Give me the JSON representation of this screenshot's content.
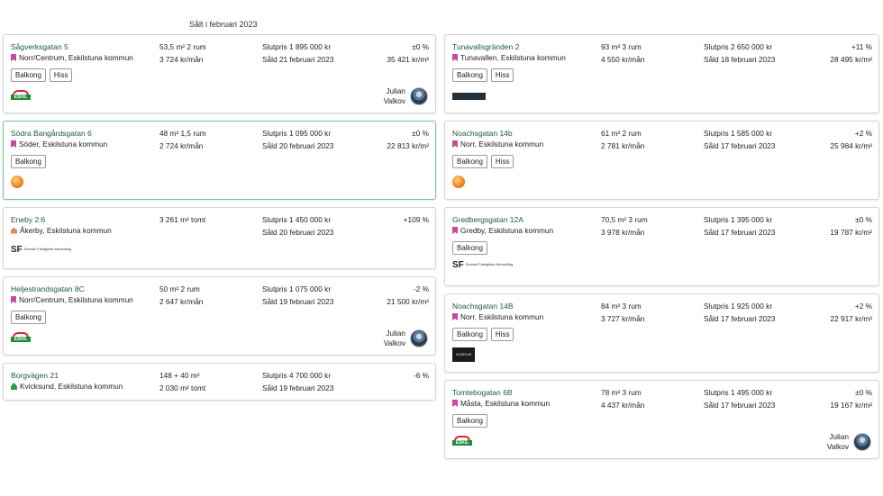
{
  "section_title": "Sålt i februari 2023",
  "left": [
    {
      "title": "Sågverksgatan 5",
      "location": "Norr/Centrum, Eskilstuna kommun",
      "type_icon": "apartment-icon",
      "area": "53,5 m²   2 rum",
      "fee": "3 724 kr/mån",
      "price": "Slutpris 1 895 000 kr",
      "sold": "Såld 21 februari 2023",
      "change": "±0 %",
      "sqm_price": "35 421 kr/m²",
      "tags": [
        "Balkong",
        "Hiss"
      ],
      "logo": "eskil-logo",
      "agent": {
        "first": "Julian",
        "last": "Valkov"
      }
    },
    {
      "title": "Södra Bangårdsgatan 6",
      "location": "Söder, Eskilstuna kommun",
      "type_icon": "apartment-icon",
      "area": "48 m²   1,5 rum",
      "fee": "2 724 kr/mån",
      "price": "Slutpris 1 095 000 kr",
      "sold": "Såld 20 februari 2023",
      "change": "±0 %",
      "sqm_price": "22 813 kr/m²",
      "tags": [
        "Balkong"
      ],
      "logo": "orange-logo"
    },
    {
      "title": "Eneby 2:6",
      "location": "Åkerby, Eskilstuna kommun",
      "type_icon": "house-icon",
      "area": "3 261 m² tomt",
      "fee": "",
      "price": "Slutpris 1 450 000 kr",
      "sold": "Såld 20 februari 2023",
      "change": "+109 %",
      "sqm_price": "",
      "tags": [],
      "logo": "sf-logo",
      "logo_text": "Svensk Fastighets förmedling"
    },
    {
      "title": "Heljestrandsgatan 8C",
      "location": "Norr/Centrum, Eskilstuna kommun",
      "type_icon": "apartment-icon",
      "area": "50 m²   2 rum",
      "fee": "2 647 kr/mån",
      "price": "Slutpris 1 075 000 kr",
      "sold": "Såld 19 februari 2023",
      "change": "-2 %",
      "sqm_price": "21 500 kr/m²",
      "tags": [
        "Balkong"
      ],
      "logo": "eskil-logo",
      "agent": {
        "first": "Julian",
        "last": "Valkov"
      }
    },
    {
      "title": "Borgvägen 21",
      "location": "Kvicksund, Eskilstuna kommun",
      "type_icon": "villa-icon",
      "area": "148 + 40 m²",
      "fee": "2 030 m² tomt",
      "price": "Slutpris 4 700 000 kr",
      "sold": "Såld 19 februari 2023",
      "change": "-6 %",
      "sqm_price": "",
      "tags": []
    }
  ],
  "right": [
    {
      "title": "Tunavallsgränden 2",
      "location": "Tunavallen, Eskilstuna kommun",
      "type_icon": "apartment-icon",
      "area": "93 m²   3 rum",
      "fee": "4 550 kr/mån",
      "price": "Slutpris 2 650 000 kr",
      "sold": "Såld 18 februari 2023",
      "change": "+11 %",
      "sqm_price": "28 495 kr/m²",
      "tags": [
        "Balkong",
        "Hiss"
      ],
      "logo": "dark-logo"
    },
    {
      "title": "Noachsgatan 14b",
      "location": "Norr, Eskilstuna kommun",
      "type_icon": "apartment-icon",
      "area": "61 m²   2 rum",
      "fee": "2 781 kr/mån",
      "price": "Slutpris 1 585 000 kr",
      "sold": "Såld 17 februari 2023",
      "change": "+2 %",
      "sqm_price": "25 984 kr/m²",
      "tags": [
        "Balkong",
        "Hiss"
      ],
      "logo": "orange-logo"
    },
    {
      "title": "Gredbergsgatan 12A",
      "location": "Gredby, Eskilstuna kommun",
      "type_icon": "apartment-icon",
      "area": "70,5 m²   3 rum",
      "fee": "3 978 kr/mån",
      "price": "Slutpris 1 395 000 kr",
      "sold": "Såld 17 februari 2023",
      "change": "±0 %",
      "sqm_price": "19 787 kr/m²",
      "tags": [
        "Balkong"
      ],
      "logo": "sf-logo",
      "logo_text": "Svensk Fastighets förmedling"
    },
    {
      "title": "Noachsgatan 14B",
      "location": "Norr, Eskilstuna kommun",
      "type_icon": "apartment-icon",
      "area": "84 m²   3 rum",
      "fee": "3 727 kr/mån",
      "price": "Slutpris 1 925 000 kr",
      "sold": "Såld 17 februari 2023",
      "change": "+2 %",
      "sqm_price": "22 917 kr/m²",
      "tags": [
        "Balkong",
        "Hiss"
      ],
      "logo": "husrum-logo",
      "logo_text": "HUSRUM"
    },
    {
      "title": "Tomtebogatan 6B",
      "location": "Måsta, Eskilstuna kommun",
      "type_icon": "apartment-icon",
      "area": "78 m²   3 rum",
      "fee": "4 437 kr/mån",
      "price": "Slutpris 1 495 000 kr",
      "sold": "Såld 17 februari 2023",
      "change": "±0 %",
      "sqm_price": "19 167 kr/m²",
      "tags": [
        "Balkong"
      ],
      "logo": "eskil-logo",
      "agent": {
        "first": "Julian",
        "last": "Valkov"
      }
    }
  ]
}
